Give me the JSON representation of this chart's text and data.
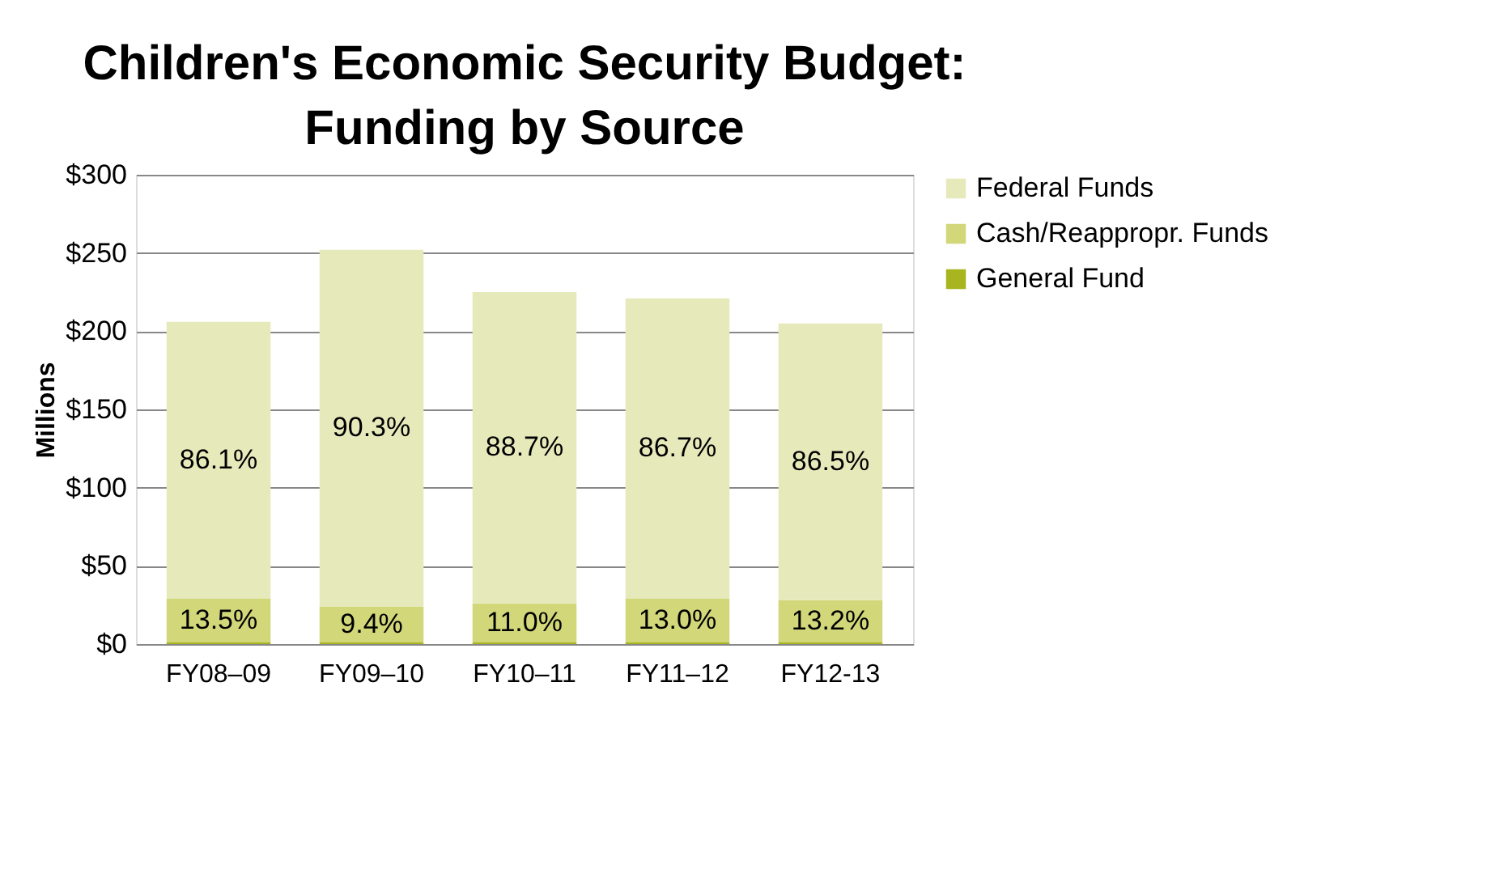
{
  "chart_data": {
    "type": "bar",
    "title": "Children's Economic Security Budget: Funding by Source",
    "ylabel": "Millions",
    "categories": [
      "FY08–09",
      "FY09–10",
      "FY10–11",
      "FY11–12",
      "FY12-13"
    ],
    "stacked": true,
    "series": [
      {
        "name": "General Fund",
        "color": "#a9b51f",
        "values": [
          1,
          1,
          1,
          1,
          1
        ]
      },
      {
        "name": "Cash/Reappropr. Funds",
        "color": "#d2d77a",
        "values": [
          28,
          23,
          25,
          28,
          27
        ]
      },
      {
        "name": "Federal Funds",
        "color": "#e6eabb",
        "values": [
          177,
          228,
          199,
          192,
          177
        ]
      }
    ],
    "annotations": [
      "13.5%",
      "9.4%",
      "11.0%",
      "13.0%",
      "13.2%",
      "86.1%",
      "90.3%",
      "88.7%",
      "86.7%",
      "86.5%"
    ],
    "ylim": [
      0,
      300
    ],
    "yticks": [
      {
        "value": 0,
        "label": "$0"
      },
      {
        "value": 50,
        "label": "$50"
      },
      {
        "value": 100,
        "label": "$100"
      },
      {
        "value": 150,
        "label": "$150"
      },
      {
        "value": 200,
        "label": "$200"
      },
      {
        "value": 250,
        "label": "$250"
      },
      {
        "value": 300,
        "label": "$300"
      }
    ],
    "grid": "y",
    "legend": "right"
  }
}
